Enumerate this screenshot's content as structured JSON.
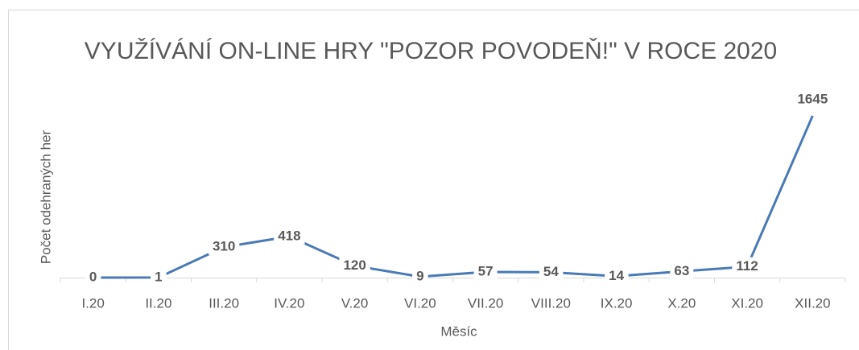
{
  "chart_data": {
    "type": "line",
    "title": "VYUŽÍVÁNÍ ON-LINE HRY \"POZOR POVODEŇ!\" V ROCE 2020",
    "x_label": "Měsíc",
    "y_label": "Počet odehraných her",
    "categories": [
      "I.20",
      "II.20",
      "III.20",
      "IV.20",
      "V.20",
      "VI.20",
      "VII.20",
      "VIII.20",
      "IX.20",
      "X.20",
      "XI.20",
      "XII.20"
    ],
    "values": [
      0,
      1,
      310,
      418,
      120,
      9,
      57,
      54,
      14,
      63,
      112,
      1645
    ],
    "color": "#4a7ab5",
    "ylim": [
      0,
      1800
    ],
    "grid": false
  }
}
